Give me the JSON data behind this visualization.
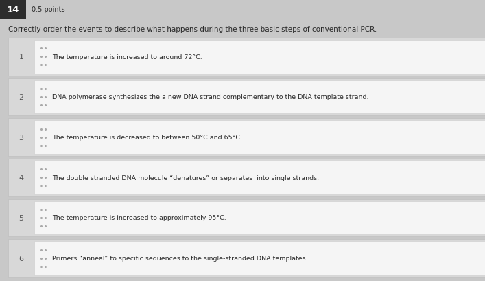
{
  "question_number": "14",
  "points": "0.5 points",
  "question_text": "Correctly order the events to describe what happens during the three basic steps of conventional PCR.",
  "rows": [
    {
      "number": "1",
      "text": "The temperature is increased to around 72°C."
    },
    {
      "number": "2",
      "text": "DNA polymerase synthesizes the a new DNA strand complementary to the DNA template strand."
    },
    {
      "number": "3",
      "text": "The temperature is decreased to between 50°C and 65°C."
    },
    {
      "number": "4",
      "text": "The double stranded DNA molecule “denatures” or separates  into single strands."
    },
    {
      "number": "5",
      "text": "The temperature is increased to approximately 95°C."
    },
    {
      "number": "6",
      "text": "Primers “anneal” to specific sequences to the single-stranded DNA templates."
    }
  ],
  "bg_color": "#c8c8c8",
  "row_outer_color": "#d8d8d8",
  "inner_box_color": "#f5f5f5",
  "header_bg": "#2d2d2d",
  "header_text_color": "#ffffff",
  "text_color": "#2a2a2a",
  "number_color": "#555555",
  "question_text_color": "#2a2a2a",
  "font_size_question": 7.5,
  "font_size_row": 6.8,
  "font_size_number": 8.0,
  "font_size_header_num": 9.5,
  "font_size_points": 7.0,
  "dot_color": "#aaaaaa"
}
